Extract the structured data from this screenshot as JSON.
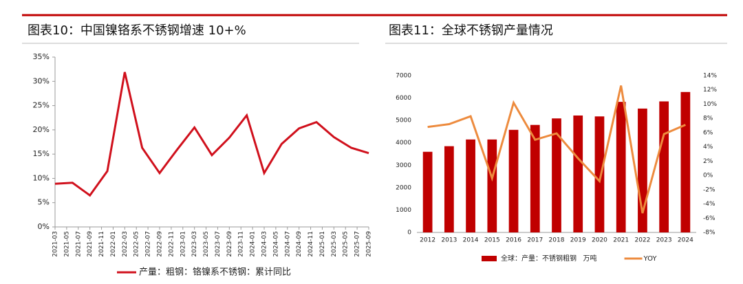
{
  "chart_data": [
    {
      "type": "line",
      "title": "图表10：中国镍铬系不锈钢增速 10+%",
      "x": [
        "2021-03",
        "2021-06",
        "2021-09",
        "2021-12",
        "2022-03",
        "2022-06",
        "2022-09",
        "2022-12",
        "2023-03",
        "2023-06",
        "2023-09",
        "2023-12",
        "2024-03",
        "2024-06",
        "2024-09",
        "2024-12",
        "2025-03",
        "2025-06",
        "2025-09"
      ],
      "series": [
        {
          "name": "产量：粗钢：铬镍系不锈钢：累计同比",
          "color": "#d0101c",
          "values": [
            8.9,
            9.1,
            6.5,
            11.5,
            31.9,
            16.3,
            11.1,
            15.9,
            20.5,
            14.8,
            18.4,
            23.0,
            11.1,
            17.1,
            20.3,
            21.6,
            18.5,
            16.3,
            15.2
          ]
        }
      ],
      "xlim": [
        "2021-03",
        "2025-09"
      ],
      "xticks": [
        "2021-03",
        "2021-05",
        "2021-07",
        "2021-09",
        "2021-11",
        "2022-01",
        "2022-03",
        "2022-05",
        "2022-07",
        "2022-09",
        "2022-11",
        "2023-01",
        "2023-03",
        "2023-05",
        "2023-07",
        "2023-09",
        "2023-11",
        "2024-01",
        "2024-03",
        "2024-05",
        "2024-07",
        "2024-09",
        "2024-11",
        "2025-01",
        "2025-03",
        "2025-05",
        "2025-07",
        "2025-09"
      ],
      "ylim": [
        0,
        35
      ],
      "yticks": [
        {
          "value": 0,
          "label": "0%"
        },
        {
          "value": 5,
          "label": "5%"
        },
        {
          "value": 10,
          "label": "10%"
        },
        {
          "value": 15,
          "label": "15%"
        },
        {
          "value": 20,
          "label": "20%"
        },
        {
          "value": 25,
          "label": "25%"
        },
        {
          "value": 30,
          "label": "30%"
        },
        {
          "value": 35,
          "label": "35%"
        }
      ],
      "legend": "bottom"
    },
    {
      "type": "bar",
      "title": "图表11：全球不锈钢产量情况",
      "categories": [
        "2012",
        "2013",
        "2014",
        "2015",
        "2016",
        "2017",
        "2018",
        "2019",
        "2020",
        "2021",
        "2022",
        "2023",
        "2024"
      ],
      "series": [
        {
          "name": "全球：产量：不锈钢粗钢   万吨",
          "color": "#c00000",
          "type": "bar",
          "values": [
            3600,
            3850,
            4150,
            4150,
            4580,
            4800,
            5090,
            5220,
            5180,
            5830,
            5530,
            5850,
            6270
          ]
        },
        {
          "name": "YOY",
          "color": "#ed8b3e",
          "type": "line",
          "axis": "y2",
          "values": [
            6.8,
            7.2,
            8.3,
            -0.4,
            10.2,
            5.0,
            5.9,
            2.4,
            -0.8,
            12.6,
            -5.3,
            5.8,
            7.1
          ]
        }
      ],
      "ylim": [
        0,
        7000
      ],
      "yticks": [
        0,
        1000,
        2000,
        3000,
        4000,
        5000,
        6000,
        7000
      ],
      "y2lim": [
        -8,
        14
      ],
      "y2ticks": [
        {
          "value": -8,
          "label": "-8%"
        },
        {
          "value": -6,
          "label": "-6%"
        },
        {
          "value": -4,
          "label": "-4%"
        },
        {
          "value": -2,
          "label": "-2%"
        },
        {
          "value": 0,
          "label": "0%"
        },
        {
          "value": 2,
          "label": "2%"
        },
        {
          "value": 4,
          "label": "4%"
        },
        {
          "value": 6,
          "label": "6%"
        },
        {
          "value": 8,
          "label": "8%"
        },
        {
          "value": 10,
          "label": "10%"
        },
        {
          "value": 12,
          "label": "12%"
        },
        {
          "value": 14,
          "label": "14%"
        }
      ],
      "legend": "bottom"
    }
  ]
}
